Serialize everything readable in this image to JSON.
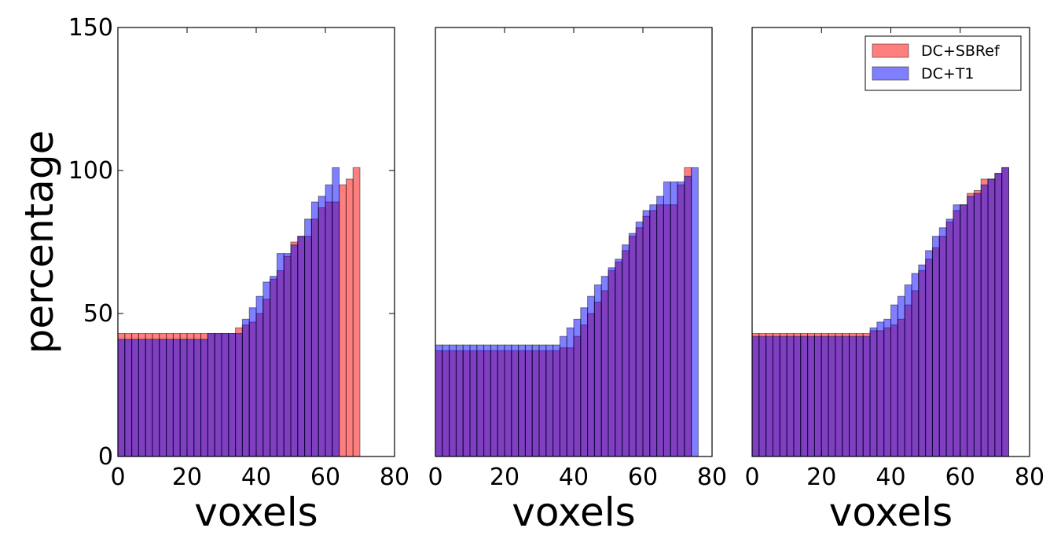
{
  "chart_data": [
    {
      "type": "bar",
      "xlabel": "voxels",
      "ylabel": "percentage",
      "xlim": [
        0,
        80
      ],
      "ylim": [
        0,
        150
      ],
      "xticks": [
        0,
        20,
        40,
        60,
        80
      ],
      "yticks": [
        0,
        50,
        100,
        150
      ],
      "bin_width": 2,
      "grid": false,
      "series": [
        {
          "name": "DC+SBRef",
          "color": "#ff0000",
          "alpha": 0.5,
          "x_start": 0,
          "values": [
            43,
            43,
            43,
            43,
            43,
            43,
            43,
            43,
            43,
            43,
            43,
            43,
            43,
            43,
            43,
            43,
            43,
            45,
            46,
            47,
            50,
            55,
            62,
            65,
            70,
            75,
            77,
            77,
            83,
            87,
            89,
            89,
            95,
            97,
            101
          ]
        },
        {
          "name": "DC+T1",
          "color": "#0000ff",
          "alpha": 0.5,
          "x_start": 0,
          "values": [
            41,
            41,
            41,
            41,
            41,
            41,
            41,
            41,
            41,
            41,
            41,
            41,
            41,
            43,
            43,
            43,
            43,
            43,
            48,
            52,
            56,
            61,
            63,
            71,
            71,
            74,
            77,
            83,
            89,
            91,
            95,
            101
          ]
        }
      ]
    },
    {
      "type": "bar",
      "xlabel": "voxels",
      "ylabel": "",
      "xlim": [
        0,
        80
      ],
      "ylim": [
        0,
        150
      ],
      "xticks": [
        0,
        20,
        40,
        60,
        80
      ],
      "yticks": [],
      "bin_width": 2,
      "grid": false,
      "series": [
        {
          "name": "DC+SBRef",
          "color": "#ff0000",
          "alpha": 0.5,
          "x_start": 0,
          "values": [
            37,
            37,
            37,
            37,
            37,
            37,
            37,
            37,
            37,
            37,
            37,
            37,
            37,
            37,
            37,
            37,
            37,
            37,
            38,
            38,
            42,
            46,
            50,
            54,
            58,
            65,
            68,
            72,
            77,
            80,
            84,
            86,
            88,
            88,
            88,
            95,
            101
          ]
        },
        {
          "name": "DC+T1",
          "color": "#0000ff",
          "alpha": 0.5,
          "x_start": 0,
          "values": [
            39,
            39,
            39,
            39,
            39,
            39,
            39,
            39,
            39,
            39,
            39,
            39,
            39,
            39,
            39,
            39,
            39,
            39,
            42,
            45,
            48,
            52,
            56,
            60,
            63,
            66,
            69,
            74,
            78,
            82,
            86,
            88,
            91,
            96,
            96,
            96,
            98,
            101
          ]
        }
      ]
    },
    {
      "type": "bar",
      "xlabel": "voxels",
      "ylabel": "",
      "xlim": [
        0,
        80
      ],
      "ylim": [
        0,
        150
      ],
      "xticks": [
        0,
        20,
        40,
        60,
        80
      ],
      "yticks": [],
      "bin_width": 2,
      "grid": false,
      "legend_position": "top-right",
      "series": [
        {
          "name": "DC+SBRef",
          "color": "#ff0000",
          "alpha": 0.5,
          "x_start": 0,
          "values": [
            43,
            43,
            43,
            43,
            43,
            43,
            43,
            43,
            43,
            43,
            43,
            43,
            43,
            43,
            43,
            43,
            43,
            44,
            44,
            45,
            46,
            48,
            53,
            58,
            65,
            69,
            73,
            77,
            82,
            86,
            88,
            92,
            93,
            97,
            97,
            99,
            101
          ]
        },
        {
          "name": "DC+T1",
          "color": "#0000ff",
          "alpha": 0.5,
          "x_start": 0,
          "values": [
            42,
            42,
            42,
            42,
            42,
            42,
            42,
            42,
            42,
            42,
            42,
            42,
            42,
            42,
            42,
            42,
            42,
            45,
            47,
            48,
            53,
            56,
            60,
            64,
            67,
            72,
            77,
            80,
            83,
            88,
            88,
            91,
            92,
            95,
            97,
            99,
            101
          ]
        }
      ]
    }
  ]
}
